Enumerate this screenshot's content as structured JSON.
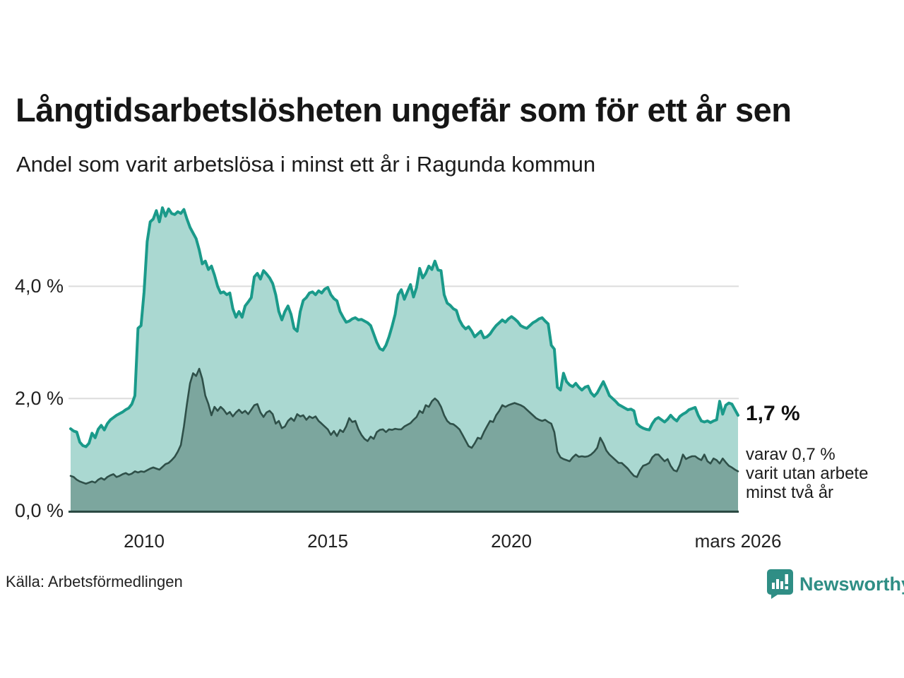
{
  "header": {
    "title": "Långtidsarbetslösheten ungefär som för ett år sen",
    "subtitle": "Andel som varit arbetslösa i minst ett år i Ragunda kommun"
  },
  "annotations": {
    "latest_total": "1,7 %",
    "sub_lines": [
      "varav 0,7 %",
      "varit utan arbete",
      "minst två år"
    ]
  },
  "footer": {
    "source": "Källa: Arbetsförmedlingen",
    "brand": "Newsworthy"
  },
  "colors": {
    "series1_line": "#1a9a8a",
    "series1_fill": "#aad8d1",
    "series2_line": "#2f5049",
    "series2_fill": "#7ca69e",
    "gridline": "#dcdcdc",
    "baseline": "#2b4a43",
    "brand_teal": "#2f8e85"
  },
  "chart_data": {
    "type": "area",
    "title": "Långtidsarbetslösheten ungefär som för ett år sen",
    "subtitle": "Andel som varit arbetslösa i minst ett år i Ragunda kommun",
    "unit": "%",
    "frequency": "monthly",
    "x_start": "2008-01",
    "x_end": "2026-03",
    "ylim": [
      0,
      5.6
    ],
    "grid": "horizontal",
    "legend": "none",
    "y_ticks": [
      {
        "value": 0,
        "label": "0,0 %"
      },
      {
        "value": 2,
        "label": "2,0 %"
      },
      {
        "value": 4,
        "label": "4,0 %"
      }
    ],
    "x_ticks": [
      {
        "index": 24,
        "label": "2010"
      },
      {
        "index": 84,
        "label": "2015"
      },
      {
        "index": 144,
        "label": "2020"
      },
      {
        "index": 218,
        "label": "mars 2026"
      }
    ],
    "series": [
      {
        "name": "Andel arbetslösa minst ett år",
        "latest_label": "1,7 %",
        "values": [
          1.46,
          1.42,
          1.4,
          1.22,
          1.16,
          1.14,
          1.2,
          1.38,
          1.3,
          1.45,
          1.52,
          1.44,
          1.55,
          1.62,
          1.66,
          1.7,
          1.73,
          1.76,
          1.8,
          1.83,
          1.9,
          2.05,
          3.25,
          3.3,
          3.9,
          4.8,
          5.15,
          5.2,
          5.35,
          5.15,
          5.4,
          5.25,
          5.38,
          5.3,
          5.28,
          5.33,
          5.3,
          5.37,
          5.2,
          5.05,
          4.95,
          4.85,
          4.65,
          4.4,
          4.45,
          4.3,
          4.36,
          4.2,
          4.0,
          3.88,
          3.9,
          3.85,
          3.88,
          3.6,
          3.45,
          3.55,
          3.45,
          3.65,
          3.72,
          3.8,
          4.17,
          4.23,
          4.13,
          4.28,
          4.22,
          4.15,
          4.05,
          3.85,
          3.55,
          3.4,
          3.55,
          3.65,
          3.5,
          3.25,
          3.2,
          3.55,
          3.75,
          3.8,
          3.88,
          3.9,
          3.85,
          3.92,
          3.88,
          3.95,
          3.98,
          3.85,
          3.78,
          3.74,
          3.55,
          3.45,
          3.36,
          3.38,
          3.42,
          3.44,
          3.4,
          3.41,
          3.38,
          3.35,
          3.3,
          3.15,
          3.0,
          2.89,
          2.86,
          2.95,
          3.1,
          3.29,
          3.5,
          3.85,
          3.94,
          3.77,
          3.9,
          4.03,
          3.81,
          3.98,
          4.32,
          4.15,
          4.23,
          4.36,
          4.3,
          4.45,
          4.29,
          4.28,
          3.85,
          3.7,
          3.66,
          3.6,
          3.57,
          3.4,
          3.3,
          3.24,
          3.28,
          3.2,
          3.1,
          3.15,
          3.2,
          3.08,
          3.1,
          3.15,
          3.23,
          3.3,
          3.35,
          3.4,
          3.36,
          3.42,
          3.46,
          3.42,
          3.37,
          3.3,
          3.27,
          3.25,
          3.3,
          3.35,
          3.38,
          3.42,
          3.44,
          3.38,
          3.33,
          2.95,
          2.88,
          2.2,
          2.15,
          2.45,
          2.3,
          2.24,
          2.21,
          2.27,
          2.2,
          2.15,
          2.2,
          2.22,
          2.1,
          2.04,
          2.1,
          2.2,
          2.3,
          2.18,
          2.05,
          2.0,
          1.95,
          1.89,
          1.86,
          1.83,
          1.8,
          1.81,
          1.78,
          1.55,
          1.5,
          1.47,
          1.45,
          1.44,
          1.55,
          1.63,
          1.66,
          1.62,
          1.58,
          1.63,
          1.7,
          1.64,
          1.6,
          1.68,
          1.72,
          1.75,
          1.8,
          1.82,
          1.84,
          1.7,
          1.6,
          1.58,
          1.6,
          1.57,
          1.6,
          1.62,
          1.95,
          1.72,
          1.88,
          1.92,
          1.9,
          1.8,
          1.7
        ]
      },
      {
        "name": "Andel utan arbete minst två år",
        "latest_label": "0,7 %",
        "values": [
          0.62,
          0.6,
          0.55,
          0.52,
          0.5,
          0.48,
          0.5,
          0.52,
          0.5,
          0.55,
          0.58,
          0.55,
          0.6,
          0.63,
          0.65,
          0.6,
          0.62,
          0.65,
          0.67,
          0.64,
          0.66,
          0.7,
          0.68,
          0.7,
          0.69,
          0.72,
          0.75,
          0.77,
          0.75,
          0.73,
          0.78,
          0.83,
          0.85,
          0.9,
          0.96,
          1.05,
          1.17,
          1.5,
          1.9,
          2.27,
          2.45,
          2.4,
          2.53,
          2.35,
          2.05,
          1.9,
          1.7,
          1.85,
          1.78,
          1.85,
          1.8,
          1.72,
          1.76,
          1.68,
          1.75,
          1.8,
          1.74,
          1.78,
          1.72,
          1.8,
          1.88,
          1.9,
          1.75,
          1.67,
          1.75,
          1.78,
          1.72,
          1.55,
          1.6,
          1.47,
          1.5,
          1.6,
          1.65,
          1.6,
          1.72,
          1.68,
          1.7,
          1.62,
          1.68,
          1.65,
          1.68,
          1.6,
          1.55,
          1.5,
          1.45,
          1.35,
          1.42,
          1.33,
          1.44,
          1.4,
          1.5,
          1.65,
          1.58,
          1.6,
          1.45,
          1.35,
          1.28,
          1.24,
          1.32,
          1.28,
          1.4,
          1.44,
          1.45,
          1.4,
          1.45,
          1.44,
          1.46,
          1.45,
          1.45,
          1.5,
          1.53,
          1.56,
          1.62,
          1.67,
          1.78,
          1.74,
          1.88,
          1.85,
          1.95,
          2.0,
          1.95,
          1.85,
          1.7,
          1.6,
          1.55,
          1.54,
          1.5,
          1.45,
          1.35,
          1.25,
          1.15,
          1.12,
          1.2,
          1.3,
          1.28,
          1.4,
          1.5,
          1.6,
          1.58,
          1.7,
          1.78,
          1.88,
          1.85,
          1.88,
          1.9,
          1.92,
          1.9,
          1.88,
          1.85,
          1.8,
          1.75,
          1.7,
          1.65,
          1.62,
          1.6,
          1.62,
          1.58,
          1.55,
          1.4,
          1.05,
          0.95,
          0.92,
          0.9,
          0.88,
          0.95,
          1.0,
          0.96,
          0.97,
          0.96,
          0.97,
          1.0,
          1.05,
          1.12,
          1.3,
          1.2,
          1.07,
          1.0,
          0.95,
          0.9,
          0.85,
          0.85,
          0.8,
          0.75,
          0.68,
          0.62,
          0.6,
          0.72,
          0.8,
          0.82,
          0.85,
          0.95,
          1.0,
          1.0,
          0.94,
          0.88,
          0.92,
          0.8,
          0.72,
          0.7,
          0.82,
          1.0,
          0.92,
          0.95,
          0.97,
          0.97,
          0.93,
          0.9,
          1.0,
          0.88,
          0.84,
          0.93,
          0.9,
          0.84,
          0.93,
          0.86,
          0.8,
          0.77,
          0.73,
          0.7
        ]
      }
    ]
  }
}
